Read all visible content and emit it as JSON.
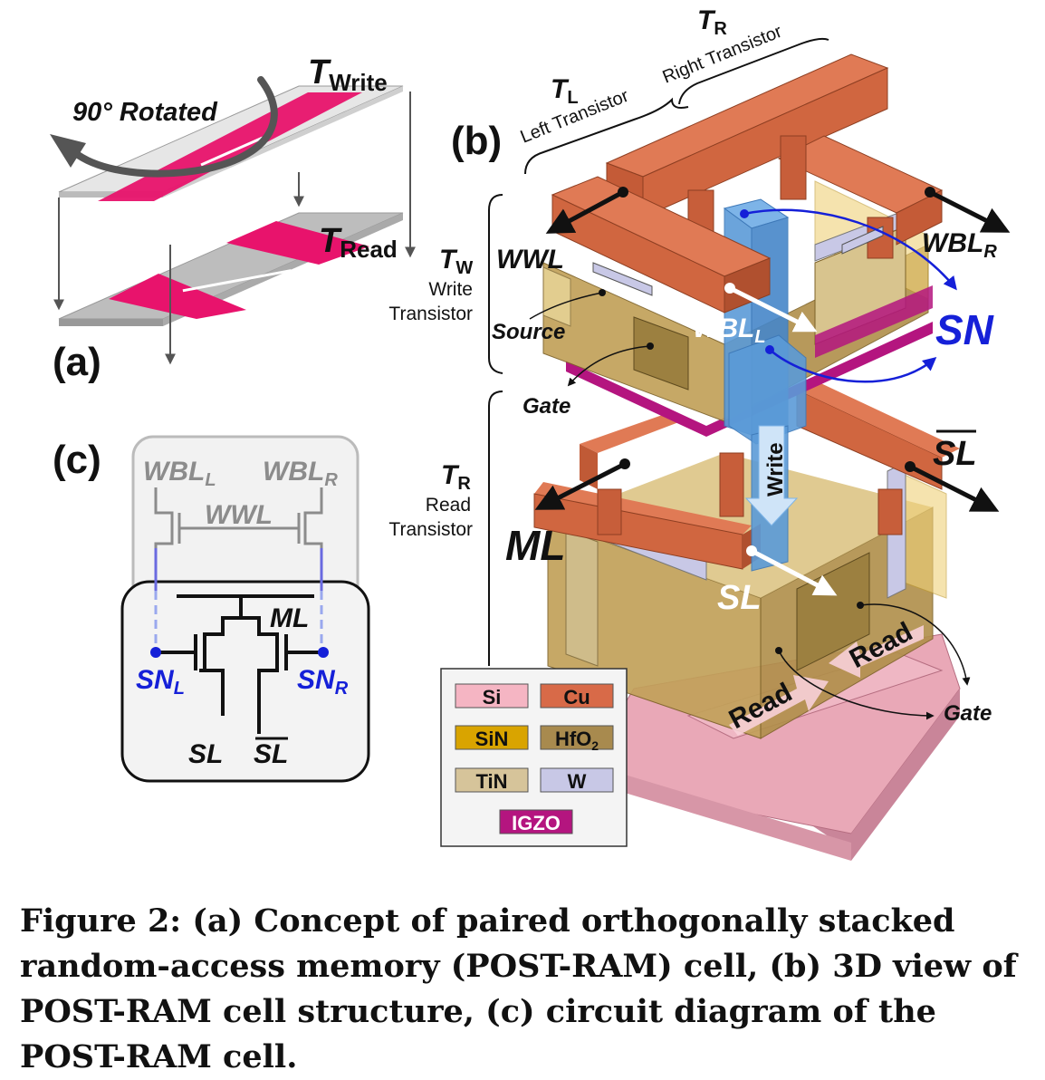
{
  "panel_a": {
    "label": "(a)",
    "rotated": "90° Rotated",
    "t_write_main": "T",
    "t_write_sub": "Write",
    "t_read_main": "T",
    "t_read_sub": "Read"
  },
  "panel_b": {
    "label": "(b)",
    "tl_main": "T",
    "tl_sub": "L",
    "tl_desc": "Left Transistor",
    "tr_main": "T",
    "tr_sub": "R",
    "tr_desc": "Right Transistor",
    "tw_main": "T",
    "tw_sub": "W",
    "tw_desc1": "Write",
    "tw_desc2": "Transistor",
    "tread_main": "T",
    "tread_sub": "R",
    "tread_desc1": "Read",
    "tread_desc2": "Transistor",
    "wwl": "WWL",
    "source": "Source",
    "gate_top": "Gate",
    "wbl_l_main": "WBL",
    "wbl_l_sub": "L",
    "wbl_r_main": "WBL",
    "wbl_r_sub": "R",
    "sn": "SN",
    "sl_bar": "SL",
    "ml": "ML",
    "sl": "SL",
    "write": "Write",
    "read1": "Read",
    "read2": "Read",
    "gate_bottom": "Gate",
    "legend": [
      "Si",
      "Cu",
      "SiN",
      "HfO",
      "TiN",
      "W",
      "IGZO"
    ],
    "legend_hfo_sub": "2"
  },
  "panel_c": {
    "label": "(c)",
    "wbl_l_main": "WBL",
    "wbl_l_sub": "L",
    "wbl_r_main": "WBL",
    "wbl_r_sub": "R",
    "wwl": "WWL",
    "ml": "ML",
    "sn_l_main": "SN",
    "sn_l_sub": "L",
    "sn_r_main": "SN",
    "sn_r_sub": "R",
    "sl": "SL",
    "sl_bar": "SL"
  },
  "caption": "Figure 2: (a) Concept of paired orthogonally stacked random-access memory (POST-RAM) cell, (b) 3D view of POST-RAM cell structure, (c) circuit diagram of the POST-RAM cell.",
  "colors": {
    "si": "#f5b5c3",
    "cu": "#d86a48",
    "sin": "#d9a400",
    "hfo2": "#a88a4e",
    "tin": "#d6c49a",
    "w": "#c8c8e6",
    "igzo": "#b4157f",
    "channel": "#5b9bd8",
    "accent_pink": "#e8136c",
    "blue": "#1520d8"
  }
}
